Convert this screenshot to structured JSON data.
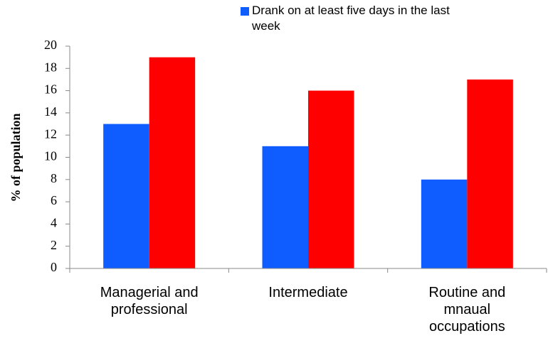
{
  "chart_data": {
    "type": "bar",
    "y_label": "% of population",
    "categories": [
      "Managerial and professional",
      "Intermediate",
      "Routine and mnaual occupations"
    ],
    "series": [
      {
        "name": "Drank on at least five days in the last week",
        "color": "#0f5cff",
        "values": [
          13,
          11,
          8
        ]
      },
      {
        "color": "#ff0000",
        "values": [
          19,
          16,
          17
        ]
      }
    ],
    "ylim": [
      0,
      20
    ],
    "yticks": [
      0,
      2,
      4,
      6,
      8,
      10,
      12,
      14,
      16,
      18,
      20
    ],
    "legend": "top"
  }
}
